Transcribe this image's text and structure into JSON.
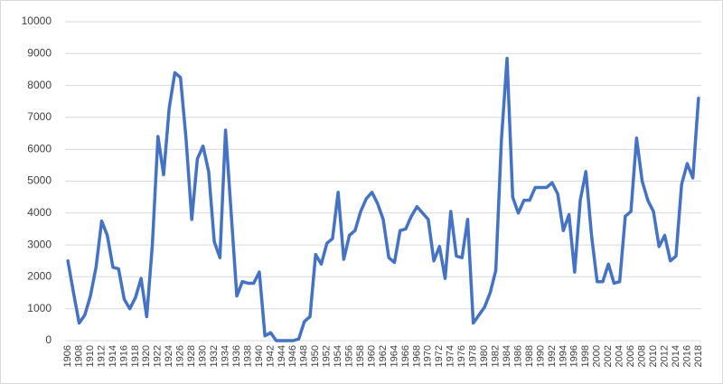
{
  "chart_data": {
    "type": "line",
    "categories": [
      1906,
      null,
      1908,
      null,
      1910,
      null,
      1912,
      null,
      1914,
      null,
      1916,
      null,
      1918,
      null,
      1920,
      null,
      1922,
      null,
      1924,
      null,
      1926,
      null,
      1928,
      null,
      1930,
      null,
      1932,
      null,
      1934,
      null,
      1936,
      null,
      1938,
      null,
      1940,
      null,
      1942,
      null,
      1944,
      null,
      1946,
      null,
      1948,
      null,
      1950,
      null,
      1952,
      null,
      1954,
      null,
      1956,
      null,
      1958,
      null,
      1960,
      null,
      1962,
      null,
      1964,
      null,
      1966,
      null,
      1968,
      null,
      1970,
      null,
      1972,
      null,
      1974,
      null,
      1976,
      null,
      1978,
      null,
      1980,
      null,
      1982,
      null,
      1984,
      null,
      1986,
      null,
      1988,
      null,
      1990,
      null,
      1992,
      null,
      1994,
      null,
      1996,
      null,
      1998,
      null,
      2000,
      null,
      2002,
      null,
      2004,
      null,
      2006,
      null,
      2008,
      null,
      2010,
      null,
      2012,
      null,
      2014,
      null,
      2016,
      null,
      2018
    ],
    "values": [
      2500,
      1500,
      550,
      800,
      1400,
      2300,
      3750,
      3300,
      2300,
      2250,
      1300,
      1000,
      1350,
      1950,
      750,
      3000,
      6400,
      5200,
      7300,
      8400,
      8250,
      6300,
      3800,
      5700,
      6100,
      5300,
      3100,
      2600,
      6600,
      4000,
      1400,
      1850,
      1800,
      1800,
      2150,
      150,
      250,
      0,
      0,
      0,
      0,
      50,
      600,
      750,
      2700,
      2400,
      3050,
      3200,
      4650,
      2550,
      3300,
      3450,
      4050,
      4450,
      4650,
      4300,
      3800,
      2600,
      2450,
      3450,
      3500,
      3900,
      4200,
      4000,
      3800,
      2500,
      2950,
      1950,
      4050,
      2650,
      2600,
      3800,
      550,
      800,
      1050,
      1500,
      2200,
      6300,
      8850,
      4500,
      4000,
      4400,
      4400,
      4800,
      4800,
      4800,
      4950,
      4600,
      3450,
      3950,
      2150,
      4400,
      5300,
      3300,
      1850,
      1850,
      2400,
      1800,
      1850,
      3900,
      4050,
      6350,
      5000,
      4400,
      4050,
      2950,
      3300,
      2500,
      2650,
      4900,
      5550,
      5100,
      7600
    ],
    "color": "#4472c4",
    "ylim": [
      0,
      10000
    ],
    "yticks": [
      0,
      1000,
      2000,
      3000,
      4000,
      5000,
      6000,
      7000,
      8000,
      9000,
      10000
    ],
    "grid": true
  }
}
